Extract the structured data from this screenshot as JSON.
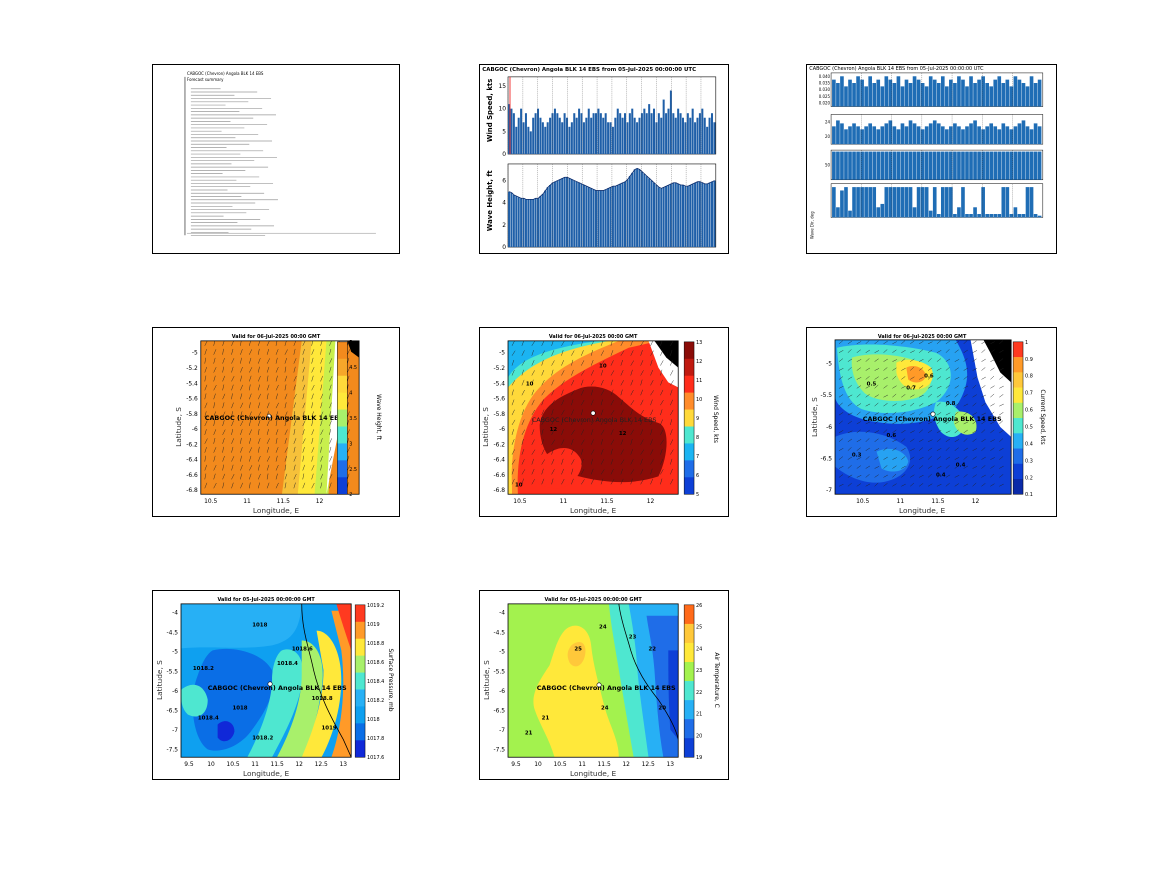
{
  "panels": {
    "report": {
      "header": "CABGOC (Chevron) Angola BLK 14 EBS",
      "subheader": "Forecast summary",
      "text_lines": 46
    },
    "timeseries": {
      "title": "CABGOC (Chevron) Angola BLK 14 EBS from 05-Jul-2025 00:00:00 UTC",
      "wind_ylabel": "Wind Speed, kts",
      "wave_ylabel": "Wave Height, ft",
      "wind_yticks": [
        "0",
        "5",
        "10",
        "15"
      ],
      "wave_yticks": [
        "0",
        "2",
        "4",
        "6"
      ]
    },
    "bars": {
      "title": "CABGOC (Chevron) Angola BLK 14 EBS from 05-Jul-2025 00:00:00 UTC",
      "row1_yticks": [
        "0.020",
        "0.025",
        "0.030",
        "0.035",
        "0.040"
      ],
      "row2_yticks": [
        "20",
        "24"
      ],
      "row3_yticks": [
        "50"
      ],
      "row4_label": "Wave Dir, deg"
    },
    "wave_map": {
      "title": "Valid for 06-Jul-2025 00:00 GMT",
      "xlabel": "Longitude, E",
      "ylabel": "Latitude, S",
      "cbar_label": "Wave Height, ft",
      "site_label": "CABGOC (Chevron) Angola BLK 14 EBS",
      "xticks": [
        "10.5",
        "11",
        "11.5",
        "12"
      ],
      "yticks": [
        "-5",
        "-5.2",
        "-5.4",
        "-5.6",
        "-5.8",
        "-6",
        "-6.2",
        "-6.4",
        "-6.6",
        "-6.8"
      ],
      "cbar_ticks": [
        "5",
        "4.5",
        "4",
        "3.5",
        "3",
        "2.5",
        "2"
      ]
    },
    "wind_map": {
      "title": "Valid for 06-Jul-2025 00:00 GMT",
      "xlabel": "Longitude, E",
      "ylabel": "Latitude, S",
      "cbar_label": "Wind Speed, kts",
      "site_label": "CABGOC (Chevron) Angola BLK 14 EBS",
      "xticks": [
        "10.5",
        "11",
        "11.5",
        "12"
      ],
      "yticks": [
        "-5",
        "-5.2",
        "-5.4",
        "-5.6",
        "-5.8",
        "-6",
        "-6.2",
        "-6.4",
        "-6.6",
        "-6.8"
      ],
      "cbar_ticks": [
        "13",
        "12",
        "11",
        "10",
        "9",
        "8",
        "7",
        "6",
        "5"
      ],
      "contour_labels": [
        "10",
        "12",
        "12",
        "10",
        "10"
      ]
    },
    "current_map": {
      "title": "Valid for 06-Jul-2025 00:00 GMT",
      "xlabel": "Longitude, E",
      "ylabel": "Latitude, S",
      "cbar_label": "Current Speed, kts",
      "site_label": "CABGOC (Chevron) Angola BLK 14 EBS",
      "xticks": [
        "10.5",
        "11",
        "11.5",
        "12"
      ],
      "yticks": [
        "-5",
        "-5.5",
        "-6",
        "-6.5",
        "-7"
      ],
      "cbar_ticks": [
        "1",
        "0.9",
        "0.8",
        "0.7",
        "0.6",
        "0.5",
        "0.4",
        "0.3",
        "0.2",
        "0.1"
      ],
      "contour_labels": [
        "0.6",
        "0.5",
        "0.7",
        "0.8",
        "0.4",
        "0.3",
        "0.6",
        "0.4"
      ]
    },
    "pressure_map": {
      "title": "Valid for 05-Jul-2025 00:00:00 GMT",
      "xlabel": "Longitude, E",
      "ylabel": "Latitude, S",
      "cbar_label": "Surface Pressure, mb",
      "site_label": "CABGOC (Chevron) Angola BLK 14 EBS",
      "xticks": [
        "9.5",
        "10",
        "10.5",
        "11",
        "11.5",
        "12",
        "12.5",
        "13"
      ],
      "yticks": [
        "-4",
        "-4.5",
        "-5",
        "-5.5",
        "-6",
        "-6.5",
        "-7",
        "-7.5"
      ],
      "cbar_ticks": [
        "1019.2",
        "1019",
        "1018.8",
        "1018.6",
        "1018.4",
        "1018.2",
        "1018",
        "1017.8",
        "1017.6"
      ],
      "contour_labels": [
        "1018",
        "1018.2",
        "1018.4",
        "1018.6",
        "1018.8",
        "1019",
        "1018",
        "1018.2",
        "1018.4"
      ]
    },
    "temp_map": {
      "title": "Valid for 05-Jul-2025 00:00:00 GMT",
      "xlabel": "Longitude, E",
      "ylabel": "Latitude, S",
      "cbar_label": "Air Temperature, C",
      "site_label": "CABGOC (Chevron) Angola BLK 14 EBS",
      "xticks": [
        "9.5",
        "10",
        "10.5",
        "11",
        "11.5",
        "12",
        "12.5",
        "13"
      ],
      "yticks": [
        "-4",
        "-4.5",
        "-5",
        "-5.5",
        "-6",
        "-6.5",
        "-7",
        "-7.5"
      ],
      "cbar_ticks": [
        "26",
        "25",
        "24",
        "23",
        "22",
        "21",
        "20",
        "19"
      ],
      "contour_labels": [
        "24",
        "23",
        "22",
        "25",
        "24",
        "21",
        "20",
        "21"
      ]
    }
  },
  "chart_data": [
    {
      "type": "bar",
      "title": "CABGOC (Chevron) Angola BLK 14 EBS from 05-Jul-2025 00:00:00 UTC",
      "ylabel": "Wind Speed, kts",
      "ylim": [
        0,
        17
      ],
      "values": [
        11,
        10,
        9,
        6,
        8,
        10,
        7,
        9,
        6,
        5,
        8,
        9,
        10,
        8,
        7,
        6,
        7,
        8,
        9,
        10,
        9,
        8,
        7,
        9,
        8,
        6,
        7,
        9,
        8,
        10,
        9,
        7,
        8,
        10,
        8,
        9,
        9,
        10,
        9,
        8,
        9,
        7,
        7,
        6,
        8,
        10,
        9,
        8,
        9,
        7,
        9,
        10,
        8,
        7,
        8,
        9,
        10,
        9,
        11,
        9,
        10,
        7,
        9,
        8,
        12,
        9,
        10,
        14,
        9,
        8,
        10,
        9,
        8,
        7,
        9,
        8,
        10,
        7,
        8,
        9,
        10,
        8,
        6,
        8,
        9,
        7
      ]
    },
    {
      "type": "bar",
      "ylabel": "Wave Height, ft",
      "ylim": [
        0,
        7.5
      ],
      "values": [
        5.0,
        4.9,
        4.7,
        4.6,
        4.5,
        4.4,
        4.4,
        4.3,
        4.3,
        4.3,
        4.3,
        4.4,
        4.4,
        4.6,
        4.8,
        5.1,
        5.4,
        5.6,
        5.8,
        5.9,
        6.0,
        6.1,
        6.2,
        6.3,
        6.3,
        6.2,
        6.1,
        6.0,
        5.9,
        5.8,
        5.7,
        5.6,
        5.5,
        5.4,
        5.3,
        5.2,
        5.1,
        5.1,
        5.1,
        5.1,
        5.2,
        5.3,
        5.4,
        5.5,
        5.5,
        5.6,
        5.7,
        5.8,
        5.9,
        6.1,
        6.4,
        6.7,
        7.0,
        7.1,
        7.0,
        6.8,
        6.6,
        6.4,
        6.2,
        6.0,
        5.8,
        5.6,
        5.4,
        5.3,
        5.4,
        5.5,
        5.6,
        5.7,
        5.8,
        5.8,
        5.7,
        5.6,
        5.6,
        5.5,
        5.5,
        5.6,
        5.7,
        5.8,
        5.9,
        5.9,
        5.8,
        5.7,
        5.7,
        5.8,
        5.9,
        6.0
      ]
    },
    {
      "type": "bar",
      "ylabel": "",
      "values": [
        0.8,
        0.7,
        0.9,
        0.6,
        0.8,
        0.7,
        0.9,
        0.8,
        0.6,
        0.9,
        0.7,
        0.8,
        0.6,
        0.9,
        0.8,
        0.7,
        0.9,
        0.6,
        0.8,
        0.7,
        0.9,
        0.8,
        0.7,
        0.6,
        0.9,
        0.8,
        0.7,
        0.9,
        0.6,
        0.8,
        0.7,
        0.9,
        0.8,
        0.6,
        0.9,
        0.7,
        0.8,
        0.9,
        0.7,
        0.6,
        0.8,
        0.9,
        0.7,
        0.8,
        0.6,
        0.9,
        0.8,
        0.7,
        0.6,
        0.9,
        0.7,
        0.8
      ]
    },
    {
      "type": "bar",
      "ylabel": "",
      "values": [
        0.6,
        0.8,
        0.7,
        0.5,
        0.6,
        0.7,
        0.6,
        0.5,
        0.6,
        0.7,
        0.6,
        0.5,
        0.6,
        0.7,
        0.8,
        0.6,
        0.5,
        0.7,
        0.6,
        0.8,
        0.7,
        0.6,
        0.5,
        0.6,
        0.7,
        0.8,
        0.7,
        0.6,
        0.5,
        0.6,
        0.7,
        0.6,
        0.5,
        0.6,
        0.7,
        0.8,
        0.6,
        0.5,
        0.6,
        0.7,
        0.6,
        0.5,
        0.7,
        0.6,
        0.5,
        0.6,
        0.7,
        0.8,
        0.6,
        0.5,
        0.7,
        0.6
      ]
    },
    {
      "type": "bar",
      "ylabel": "",
      "values": [
        0.95,
        0.95,
        0.95,
        0.95,
        0.95,
        0.95,
        0.95,
        0.95,
        0.95,
        0.95,
        0.95,
        0.95,
        0.95,
        0.95,
        0.95,
        0.95,
        0.95,
        0.95,
        0.95,
        0.95,
        0.95,
        0.95,
        0.95,
        0.95,
        0.95,
        0.95,
        0.95,
        0.95,
        0.95,
        0.95,
        0.95,
        0.95,
        0.95,
        0.95,
        0.95,
        0.95,
        0.95,
        0.95,
        0.95,
        0.95,
        0.95,
        0.95,
        0.95,
        0.95,
        0.95,
        0.95,
        0.95,
        0.95,
        0.95,
        0.95,
        0.95,
        0.95
      ]
    },
    {
      "type": "bar",
      "ylabel": "Wave Dir, deg",
      "values": [
        0.9,
        0.3,
        0.8,
        0.9,
        0.2,
        0.9,
        0.9,
        0.9,
        0.9,
        0.9,
        0.9,
        0.3,
        0.4,
        0.9,
        0.9,
        0.9,
        0.9,
        0.9,
        0.9,
        0.9,
        0.3,
        0.9,
        0.9,
        0.9,
        0.2,
        0.9,
        0.1,
        0.9,
        0.9,
        0.9,
        0.1,
        0.3,
        0.9,
        0.1,
        0.1,
        0.3,
        0.1,
        0.9,
        0.1,
        0.1,
        0.1,
        0.1,
        0.9,
        0.9,
        0.1,
        0.3,
        0.1,
        0.1,
        0.9,
        0.9,
        0.1,
        0.05
      ]
    }
  ]
}
